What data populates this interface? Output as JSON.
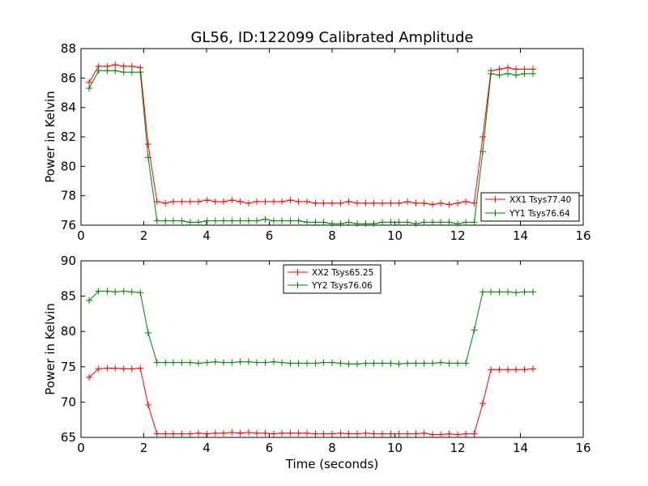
{
  "figure": {
    "title": "GL56, ID:122099 Calibrated Amplitude"
  },
  "colors": {
    "XX": "#ff0000",
    "YY": "#008000"
  },
  "chart_data": [
    {
      "type": "line",
      "title": "",
      "xlabel": "",
      "ylabel": "Power in Kelvin",
      "xlim": [
        0,
        16
      ],
      "ylim": [
        76,
        88
      ],
      "xticks": [
        0,
        2,
        4,
        6,
        8,
        10,
        12,
        14,
        16
      ],
      "yticks": [
        76,
        78,
        80,
        82,
        84,
        86,
        88
      ],
      "grid": false,
      "legend_position": "bottom-right",
      "series": [
        {
          "name": "XX1 Tsys77.40",
          "color": "#ff0000",
          "x": [
            0.26,
            0.56,
            0.84,
            1.09,
            1.36,
            1.62,
            1.89,
            2.14,
            2.42,
            2.69,
            2.94,
            3.21,
            3.48,
            3.74,
            4.02,
            4.28,
            4.54,
            4.81,
            5.07,
            5.34,
            5.6,
            5.87,
            6.14,
            6.4,
            6.67,
            6.93,
            7.2,
            7.47,
            7.73,
            8.0,
            8.27,
            8.53,
            8.8,
            9.07,
            9.33,
            9.6,
            9.87,
            10.13,
            10.4,
            10.67,
            10.93,
            11.2,
            11.46,
            11.73,
            12.0,
            12.26,
            12.53,
            12.8,
            13.06,
            13.33,
            13.6,
            13.86,
            14.13,
            14.4
          ],
          "y": [
            85.7,
            86.8,
            86.8,
            86.9,
            86.8,
            86.8,
            86.7,
            81.5,
            77.6,
            77.5,
            77.6,
            77.6,
            77.6,
            77.6,
            77.7,
            77.6,
            77.6,
            77.7,
            77.6,
            77.5,
            77.6,
            77.6,
            77.6,
            77.6,
            77.7,
            77.6,
            77.6,
            77.5,
            77.5,
            77.5,
            77.5,
            77.6,
            77.5,
            77.5,
            77.5,
            77.5,
            77.5,
            77.5,
            77.6,
            77.5,
            77.5,
            77.4,
            77.5,
            77.4,
            77.5,
            77.6,
            77.5,
            82.0,
            86.5,
            86.6,
            86.7,
            86.6,
            86.6,
            86.6
          ]
        },
        {
          "name": "YY1 Tsys76.64",
          "color": "#008000",
          "x": [
            0.26,
            0.56,
            0.84,
            1.09,
            1.36,
            1.62,
            1.89,
            2.14,
            2.42,
            2.69,
            2.94,
            3.21,
            3.48,
            3.74,
            4.02,
            4.28,
            4.54,
            4.81,
            5.07,
            5.34,
            5.6,
            5.87,
            6.14,
            6.4,
            6.67,
            6.93,
            7.2,
            7.47,
            7.73,
            8.0,
            8.27,
            8.53,
            8.8,
            9.07,
            9.33,
            9.6,
            9.87,
            10.13,
            10.4,
            10.67,
            10.93,
            11.2,
            11.46,
            11.73,
            12.0,
            12.26,
            12.53,
            12.8,
            13.06,
            13.33,
            13.6,
            13.86,
            14.13,
            14.4
          ],
          "y": [
            85.3,
            86.5,
            86.5,
            86.5,
            86.4,
            86.4,
            86.4,
            80.6,
            76.3,
            76.3,
            76.3,
            76.3,
            76.2,
            76.2,
            76.3,
            76.3,
            76.3,
            76.3,
            76.3,
            76.3,
            76.3,
            76.4,
            76.3,
            76.3,
            76.3,
            76.3,
            76.2,
            76.2,
            76.2,
            76.1,
            76.1,
            76.2,
            76.1,
            76.1,
            76.1,
            76.2,
            76.2,
            76.2,
            76.2,
            76.1,
            76.2,
            76.2,
            76.2,
            76.2,
            76.1,
            76.2,
            76.2,
            81.0,
            86.3,
            86.2,
            86.3,
            86.2,
            86.3,
            86.3
          ]
        }
      ]
    },
    {
      "type": "line",
      "title": "",
      "xlabel": "Time (seconds)",
      "ylabel": "Power in Kelvin",
      "xlim": [
        0,
        16
      ],
      "ylim": [
        65,
        90
      ],
      "xticks": [
        0,
        2,
        4,
        6,
        8,
        10,
        12,
        14,
        16
      ],
      "yticks": [
        65,
        70,
        75,
        80,
        85,
        90
      ],
      "grid": false,
      "legend_position": "top-center",
      "series": [
        {
          "name": "XX2 Tsys65.25",
          "color": "#ff0000",
          "x": [
            0.26,
            0.56,
            0.84,
            1.09,
            1.36,
            1.62,
            1.89,
            2.14,
            2.42,
            2.69,
            2.94,
            3.21,
            3.48,
            3.74,
            4.02,
            4.28,
            4.54,
            4.81,
            5.07,
            5.34,
            5.6,
            5.87,
            6.14,
            6.4,
            6.67,
            6.93,
            7.2,
            7.47,
            7.73,
            8.0,
            8.27,
            8.53,
            8.8,
            9.07,
            9.33,
            9.6,
            9.87,
            10.13,
            10.4,
            10.67,
            10.93,
            11.2,
            11.46,
            11.73,
            12.0,
            12.26,
            12.53,
            12.8,
            13.06,
            13.33,
            13.6,
            13.86,
            14.13,
            14.4
          ],
          "y": [
            73.5,
            74.7,
            74.8,
            74.8,
            74.7,
            74.7,
            74.8,
            69.6,
            65.5,
            65.5,
            65.5,
            65.5,
            65.5,
            65.6,
            65.5,
            65.6,
            65.6,
            65.7,
            65.6,
            65.7,
            65.6,
            65.6,
            65.5,
            65.6,
            65.6,
            65.6,
            65.6,
            65.5,
            65.5,
            65.5,
            65.6,
            65.5,
            65.5,
            65.6,
            65.5,
            65.5,
            65.5,
            65.5,
            65.5,
            65.5,
            65.6,
            65.4,
            65.4,
            65.5,
            65.4,
            65.5,
            65.5,
            69.8,
            74.6,
            74.6,
            74.6,
            74.6,
            74.6,
            74.7
          ]
        },
        {
          "name": "YY2 Tsys76.06",
          "color": "#008000",
          "x": [
            0.26,
            0.56,
            0.84,
            1.09,
            1.36,
            1.62,
            1.89,
            2.14,
            2.42,
            2.69,
            2.94,
            3.21,
            3.48,
            3.74,
            4.02,
            4.28,
            4.54,
            4.81,
            5.07,
            5.34,
            5.6,
            5.87,
            6.14,
            6.4,
            6.67,
            6.93,
            7.2,
            7.47,
            7.73,
            8.0,
            8.27,
            8.53,
            8.8,
            9.07,
            9.33,
            9.6,
            9.87,
            10.13,
            10.4,
            10.67,
            10.93,
            11.2,
            11.46,
            11.73,
            12.0,
            12.26,
            12.53,
            12.8,
            13.06,
            13.33,
            13.6,
            13.86,
            14.13,
            14.4
          ],
          "y": [
            84.4,
            85.7,
            85.7,
            85.6,
            85.7,
            85.6,
            85.5,
            79.8,
            75.6,
            75.6,
            75.6,
            75.6,
            75.6,
            75.5,
            75.6,
            75.7,
            75.6,
            75.6,
            75.7,
            75.7,
            75.6,
            75.6,
            75.7,
            75.6,
            75.5,
            75.5,
            75.5,
            75.5,
            75.6,
            75.6,
            75.5,
            75.4,
            75.4,
            75.5,
            75.5,
            75.5,
            75.5,
            75.4,
            75.5,
            75.5,
            75.5,
            75.5,
            75.6,
            75.5,
            75.5,
            75.5,
            80.2,
            85.6,
            85.6,
            85.6,
            85.6,
            85.5,
            85.6,
            85.6
          ]
        }
      ]
    }
  ]
}
